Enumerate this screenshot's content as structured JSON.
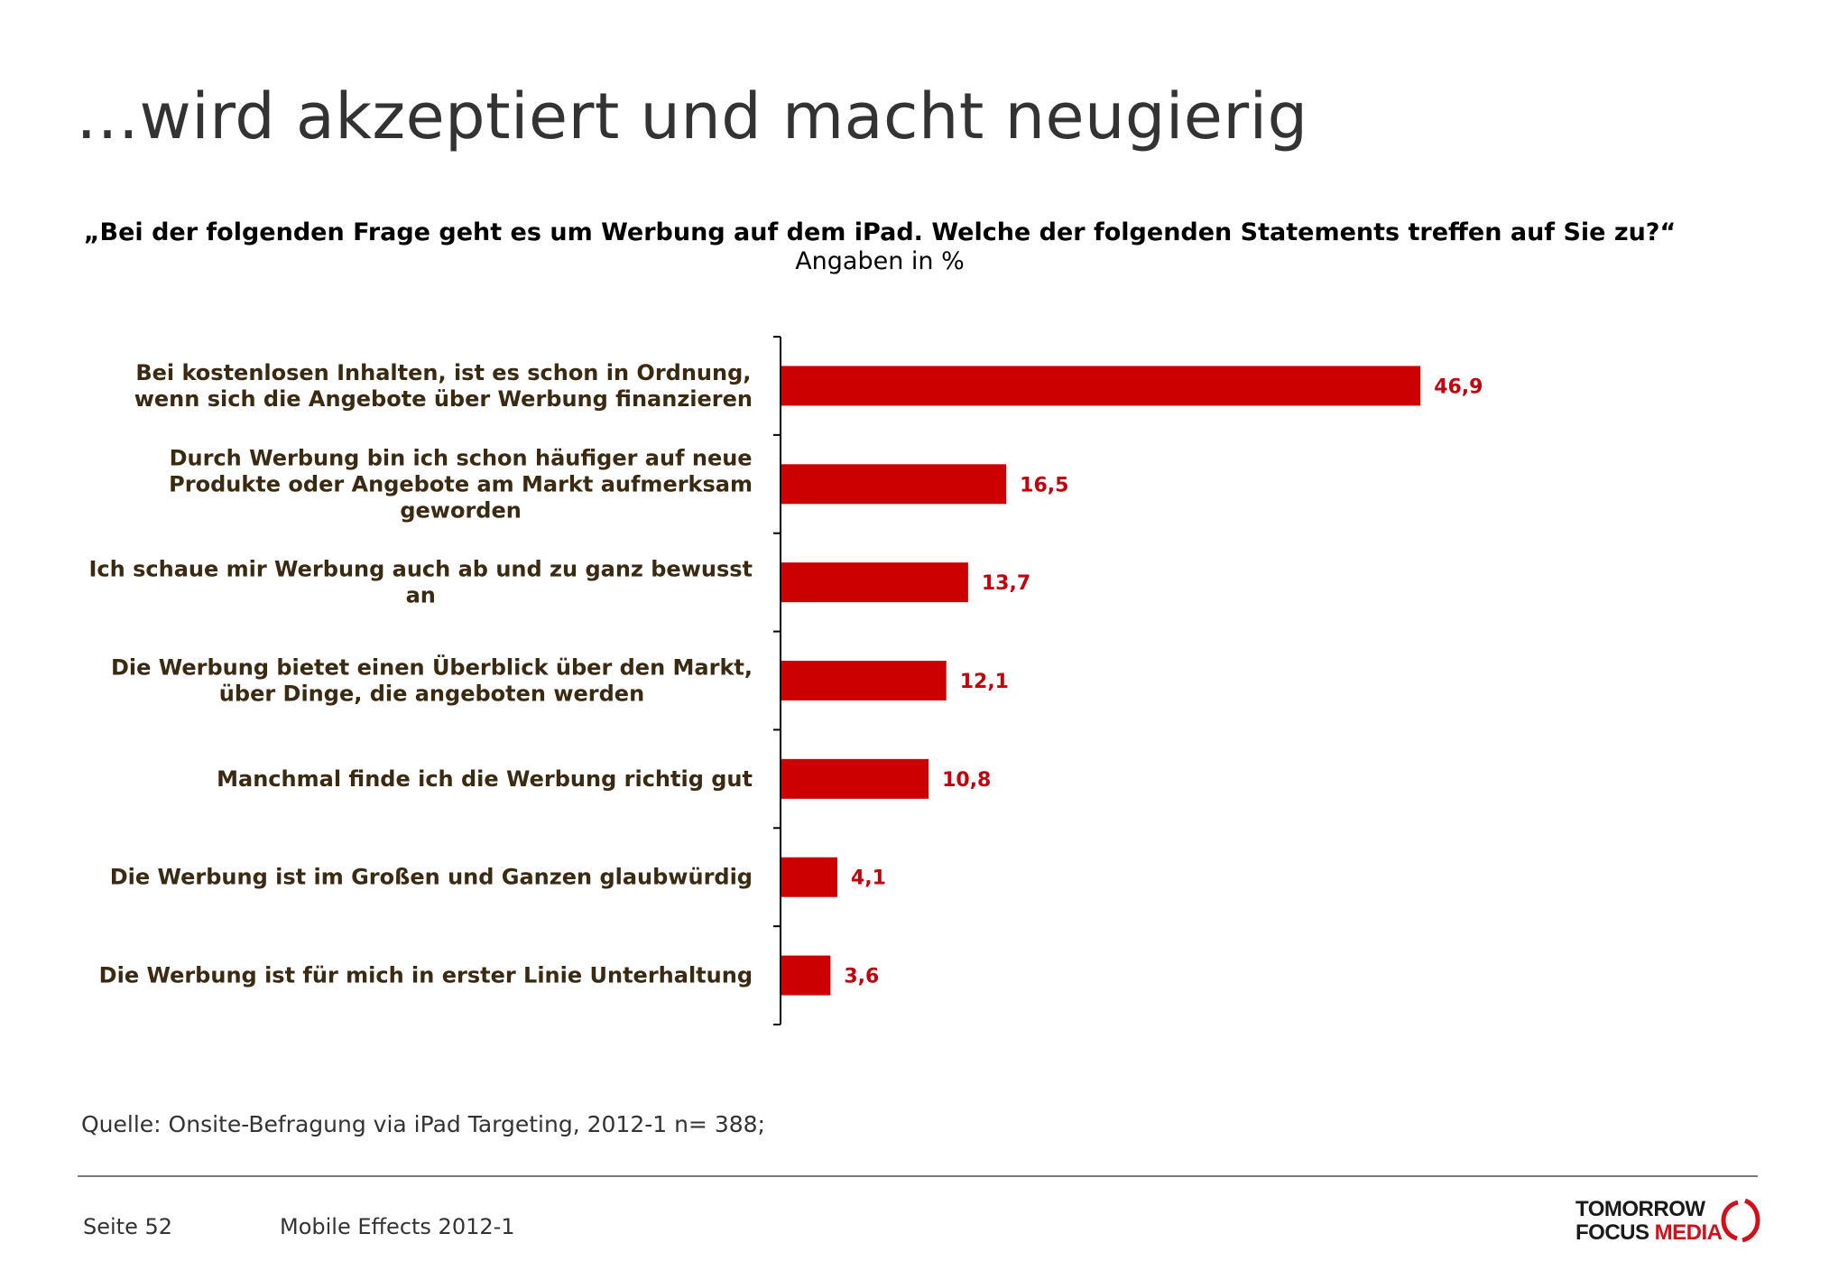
{
  "title": "…wird akzeptiert und macht neugierig",
  "question": "„Bei der folgenden Frage geht es um Werbung auf dem iPad. Welche der folgenden Statements treffen auf Sie zu?“",
  "unit": "Angaben in %",
  "chart_data": {
    "type": "bar",
    "orientation": "horizontal",
    "categories": [
      [
        "Bei kostenlosen Inhalten, ist es schon in Ordnung,",
        "wenn sich die Angebote über Werbung finanzieren"
      ],
      [
        "Durch Werbung bin ich schon häufiger auf neue",
        "Produkte oder Angebote am Markt aufmerksam",
        "geworden"
      ],
      [
        "Ich schaue mir Werbung auch ab und zu ganz bewusst",
        "an"
      ],
      [
        "Die Werbung bietet einen Überblick über den Markt,",
        "über Dinge, die angeboten werden"
      ],
      [
        "Manchmal finde ich die Werbung richtig gut"
      ],
      [
        "Die Werbung ist im Großen und Ganzen glaubwürdig"
      ],
      [
        "Die Werbung ist für mich in erster Linie Unterhaltung"
      ]
    ],
    "values": [
      46.9,
      16.5,
      13.7,
      12.1,
      10.8,
      4.1,
      3.6
    ],
    "value_labels": [
      "46,9",
      "16,5",
      "13,7",
      "12,1",
      "10,8",
      "4,1",
      "3,6"
    ],
    "xlim": [
      0,
      100
    ],
    "bar_color": "#cc0000",
    "label_color": "#c0000c",
    "grid": false
  },
  "source": "Quelle: Onsite-Befragung via iPad Targeting, 2012-1 n= 388;",
  "footer": {
    "page": "Seite 52",
    "title": "Mobile Effects 2012-1"
  },
  "logo": {
    "line1": "TOMORROW",
    "line2a": "FOCUS",
    "line2b": "MEDIA",
    "accent_color": "#d0101a"
  }
}
